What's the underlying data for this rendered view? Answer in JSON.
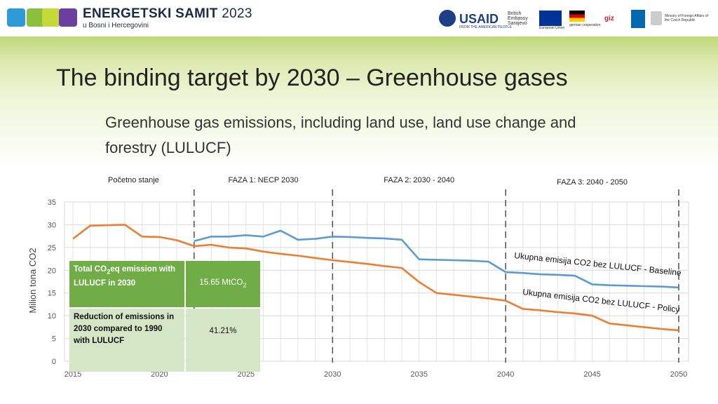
{
  "header": {
    "brand_title": "ENERGETSKI SAMIT",
    "brand_year": "2023",
    "brand_subtitle": "u Bosni i Hercegovini",
    "partners": {
      "usaid": "USAID",
      "usaid_sub": "FROM THE AMERICAN PEOPLE",
      "british_embassy": "British Embassy Sarajevo",
      "eu": "European Union",
      "german_coop": "german cooperation",
      "giz": "giz",
      "ministry": "Ministry of Foreign Affairs of the Czech Republic"
    }
  },
  "slide": {
    "title": "The binding target by 2030 – Greenhouse gases",
    "subtitle": "Greenhouse gas emissions, including land use, land use change and forestry (LULUCF)"
  },
  "table": {
    "row1_label_part1": "Total CO",
    "row1_label_sub": "2",
    "row1_label_part2": "eq emission with LULUCF in 2030",
    "row1_value": "15.65 MtCO",
    "row1_value_sub": "2",
    "row2_label": "Reduction of emissions in 2030 compared to 1990 with LULUCF",
    "row2_value": "41.21%"
  },
  "chart_data": {
    "type": "line",
    "title": "",
    "xlabel": "",
    "ylabel": "Milion tona CO2",
    "xlim": [
      2015,
      2050
    ],
    "ylim": [
      0,
      35
    ],
    "x_ticks": [
      2015,
      2020,
      2025,
      2030,
      2035,
      2040,
      2045,
      2050
    ],
    "y_ticks": [
      0,
      5,
      10,
      15,
      20,
      25,
      30,
      35
    ],
    "phases": [
      {
        "label": "Početno stanje"
      },
      {
        "label": "FAZA 1: NECP 2030",
        "start": 2022
      },
      {
        "label": "FAZA 2: 2030 - 2040",
        "start": 2030
      },
      {
        "label": "FAZA 3: 2040 - 2050",
        "start": 2040
      },
      {
        "end": 2050
      }
    ],
    "series": [
      {
        "name": "Ukupna emisija CO2 bez LULUCF - Baseline",
        "color": "#5b9bd5",
        "x": [
          2022,
          2023,
          2024,
          2025,
          2026,
          2027,
          2028,
          2029,
          2030,
          2031,
          2032,
          2033,
          2034,
          2035,
          2036,
          2037,
          2038,
          2039,
          2040,
          2041,
          2042,
          2043,
          2044,
          2045,
          2046,
          2047,
          2048,
          2049,
          2050
        ],
        "values": [
          26.4,
          27.4,
          27.4,
          27.7,
          27.4,
          28.7,
          26.7,
          26.9,
          27.4,
          27.3,
          27.1,
          27.0,
          26.7,
          22.4,
          22.3,
          22.2,
          22.1,
          21.9,
          19.6,
          19.4,
          19.1,
          19.0,
          18.8,
          16.9,
          16.7,
          16.6,
          16.5,
          16.4,
          16.2
        ]
      },
      {
        "name": "Ukupna emisija CO2 bez LULUCF - Policy",
        "color": "#ed7d31",
        "x": [
          2015,
          2016,
          2017,
          2018,
          2019,
          2020,
          2021,
          2022,
          2023,
          2024,
          2025,
          2026,
          2027,
          2028,
          2029,
          2030,
          2031,
          2032,
          2033,
          2034,
          2035,
          2036,
          2037,
          2038,
          2039,
          2040,
          2041,
          2042,
          2043,
          2044,
          2045,
          2046,
          2047,
          2048,
          2049,
          2050
        ],
        "values": [
          26.9,
          29.8,
          29.9,
          30.0,
          27.4,
          27.3,
          26.6,
          25.3,
          25.6,
          25.0,
          24.8,
          24.1,
          23.6,
          23.2,
          22.7,
          22.2,
          21.8,
          21.4,
          20.9,
          20.5,
          17.4,
          15.0,
          14.6,
          14.2,
          13.8,
          13.3,
          11.5,
          11.2,
          10.8,
          10.5,
          10.0,
          8.3,
          7.9,
          7.5,
          7.1,
          6.8
        ]
      }
    ],
    "annotations": [
      "Ukupna emisija CO2 bez LULUCF - Baseline",
      "Ukupna emisija CO2 bez LULUCF - Policy"
    ]
  }
}
